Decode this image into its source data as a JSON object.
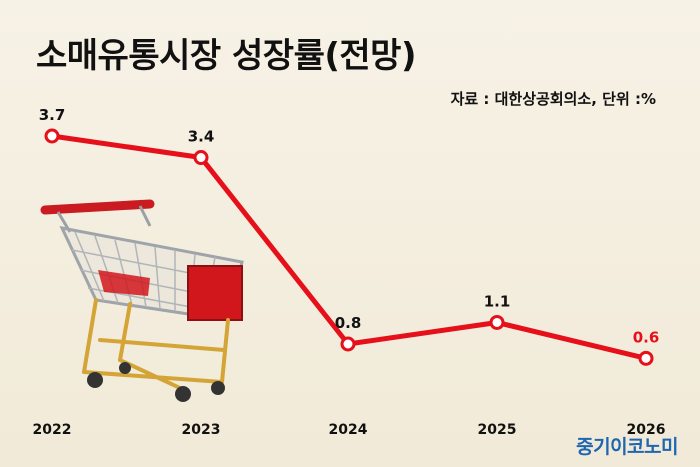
{
  "header": {
    "title": "소매유통시장 성장률(전망)",
    "source": "자료 : 대한상공회의소, 단위 :%"
  },
  "brand": {
    "name": "중기이코노미"
  },
  "colors": {
    "line": "#e5101a",
    "highlight_label": "#e5101a",
    "text": "#111111",
    "brand": "#1e66b0"
  },
  "decoration": {
    "image": "shopping-cart"
  },
  "chart_data": {
    "type": "line",
    "title": "소매유통시장 성장률(전망)",
    "unit": "%",
    "categories": [
      "2022",
      "2023",
      "2024",
      "2025",
      "2026"
    ],
    "values": [
      3.7,
      3.4,
      0.8,
      1.1,
      0.6
    ],
    "ylim": [
      0,
      4
    ],
    "grid": false,
    "legend": "none"
  }
}
